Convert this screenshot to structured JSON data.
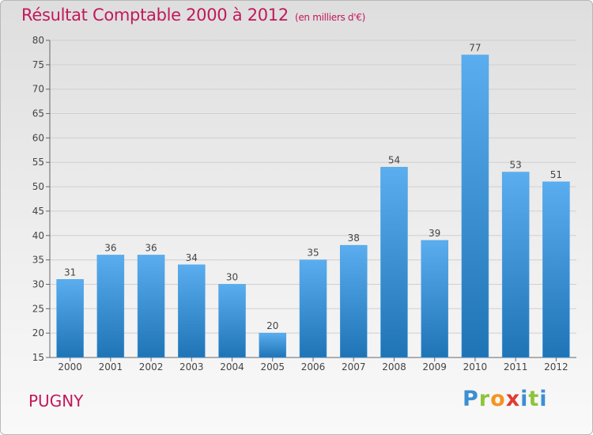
{
  "header": {
    "title": "Résultat Comptable 2000 à 2012",
    "unit": "(en milliers d'€)"
  },
  "footer": {
    "commune": "PUGNY",
    "brand": [
      "P",
      "r",
      "o",
      "x",
      "i",
      "t",
      "i"
    ]
  },
  "colors": {
    "title": "#c2185b",
    "bar_light": "#5aaef0",
    "bar_dark": "#1f74b6",
    "grid": "#d0d0d0",
    "axis": "#666666"
  },
  "chart_data": {
    "type": "bar",
    "title": "Résultat Comptable 2000 à 2012",
    "ylabel": "en milliers d'€",
    "xlabel": "",
    "categories": [
      "2000",
      "2001",
      "2002",
      "2003",
      "2004",
      "2005",
      "2006",
      "2007",
      "2008",
      "2009",
      "2010",
      "2011",
      "2012"
    ],
    "values": [
      31,
      36,
      36,
      34,
      30,
      20,
      35,
      38,
      54,
      39,
      77,
      53,
      51
    ],
    "ylim": [
      15,
      80
    ],
    "yticks": [
      15,
      20,
      25,
      30,
      35,
      40,
      45,
      50,
      55,
      60,
      65,
      70,
      75,
      80
    ],
    "grid": true
  }
}
